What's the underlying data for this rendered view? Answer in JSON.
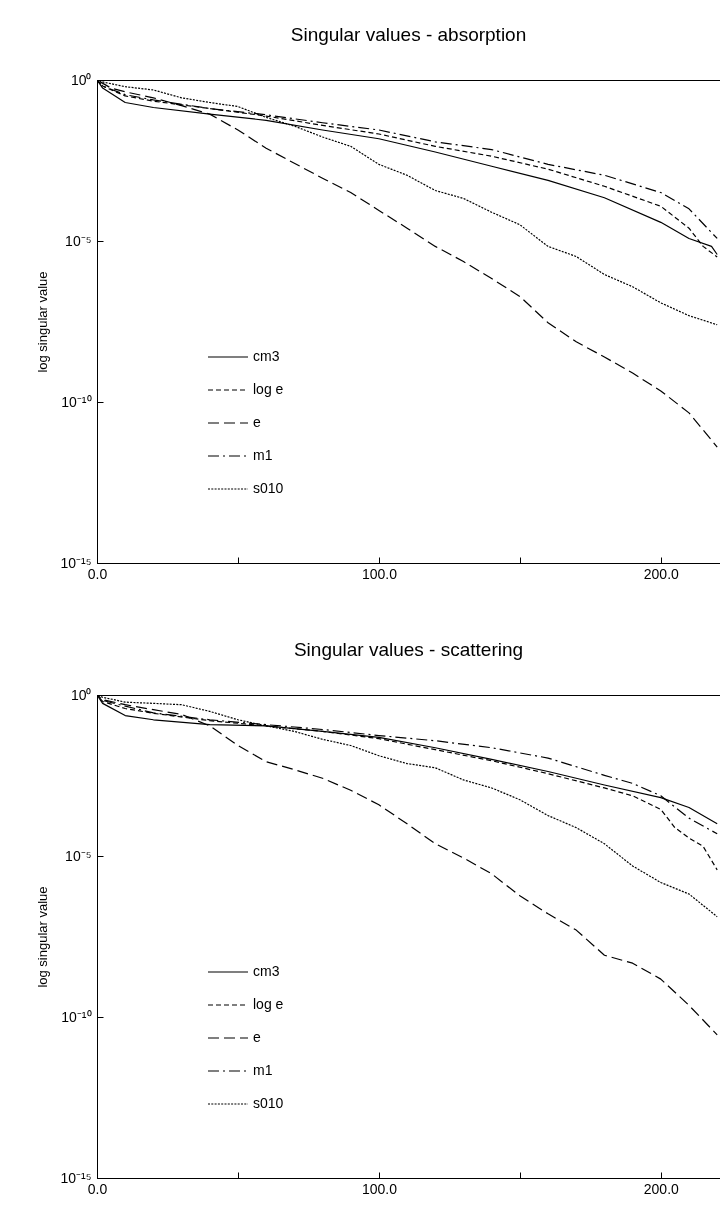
{
  "chart_data": [
    {
      "type": "line",
      "title": "Singular values - absorption",
      "ylabel": "log singular value",
      "log": true,
      "legend": "left",
      "grid": false,
      "xlim": [
        0,
        221
      ],
      "xticks": [
        {
          "value": 0,
          "label": "0.0"
        },
        {
          "value": 50,
          "label": null
        },
        {
          "value": 100,
          "label": "100.0"
        },
        {
          "value": 150,
          "label": null
        },
        {
          "value": 200,
          "label": "200.0"
        }
      ],
      "ylim": [
        1e-15,
        1
      ],
      "yticks": [
        {
          "value": 1,
          "label": "10⁰"
        },
        {
          "value": 1e-05,
          "label": "10⁻⁵"
        },
        {
          "value": 1e-10,
          "label": "10⁻¹⁰"
        },
        {
          "value": 1e-15,
          "label": "10⁻¹⁵"
        }
      ],
      "series": [
        {
          "name": "cm3",
          "color": "#000000",
          "line_style": "solid",
          "x": [
            0,
            2,
            10,
            20,
            40,
            60,
            80,
            100,
            120,
            140,
            160,
            180,
            200,
            210,
            218,
            220
          ],
          "values": [
            1,
            0.56,
            0.2,
            0.14,
            0.087,
            0.056,
            0.028,
            0.015,
            0.0058,
            0.0021,
            0.00076,
            0.00022,
            3.8e-05,
            1.2e-05,
            6.8e-06,
            3.8e-06
          ]
        },
        {
          "name": "log e",
          "color": "#000000",
          "line_style": "dashed",
          "x": [
            0,
            2,
            10,
            20,
            40,
            60,
            80,
            100,
            120,
            140,
            160,
            180,
            200,
            210,
            215,
            220
          ],
          "values": [
            1,
            0.65,
            0.32,
            0.22,
            0.13,
            0.076,
            0.039,
            0.021,
            0.0087,
            0.0043,
            0.0017,
            0.0005,
            0.00012,
            2.5e-05,
            6.8e-06,
            3.2e-06
          ]
        },
        {
          "name": "e",
          "color": "#000000",
          "line_style": "long-dashed",
          "x": [
            0,
            5,
            10,
            20,
            30,
            40,
            50,
            60,
            70,
            80,
            90,
            100,
            110,
            120,
            130,
            140,
            150,
            160,
            170,
            180,
            190,
            200,
            210,
            220
          ],
          "values": [
            1,
            0.56,
            0.43,
            0.28,
            0.16,
            0.087,
            0.028,
            0.0076,
            0.0026,
            0.00089,
            0.00032,
            8.9e-05,
            2.5e-05,
            6.8e-06,
            2.3e-06,
            6.8e-07,
            1.9e-07,
            2.9e-08,
            7.4e-09,
            2.5e-09,
            7.9e-10,
            2.2e-10,
            4.6e-11,
            4e-12
          ]
        },
        {
          "name": "m1",
          "color": "#000000",
          "line_style": "dash-dot",
          "x": [
            0,
            2,
            10,
            20,
            40,
            60,
            80,
            100,
            120,
            140,
            160,
            180,
            200,
            210,
            220
          ],
          "values": [
            1,
            0.65,
            0.35,
            0.24,
            0.13,
            0.083,
            0.047,
            0.028,
            0.012,
            0.0069,
            0.0024,
            0.0011,
            0.00032,
            0.0001,
            1.2e-05
          ]
        },
        {
          "name": "s010",
          "color": "#000000",
          "line_style": "dotted",
          "x": [
            0,
            2,
            10,
            20,
            30,
            40,
            50,
            60,
            70,
            80,
            90,
            100,
            110,
            120,
            130,
            140,
            150,
            160,
            170,
            180,
            190,
            200,
            210,
            220
          ],
          "values": [
            1,
            0.87,
            0.62,
            0.49,
            0.28,
            0.2,
            0.15,
            0.069,
            0.037,
            0.017,
            0.0087,
            0.0024,
            0.0011,
            0.00037,
            0.00021,
            7.8e-05,
            3.2e-05,
            6.8e-06,
            3.3e-06,
            9.1e-07,
            3.8e-07,
            1.2e-07,
            4.8e-08,
            2.5e-08
          ]
        }
      ]
    },
    {
      "type": "line",
      "title": "Singular values - scattering",
      "ylabel": "log singular value",
      "log": true,
      "legend": "left",
      "grid": false,
      "xlim": [
        0,
        221
      ],
      "xticks": [
        {
          "value": 0,
          "label": "0.0"
        },
        {
          "value": 50,
          "label": null
        },
        {
          "value": 100,
          "label": "100.0"
        },
        {
          "value": 150,
          "label": null
        },
        {
          "value": 200,
          "label": "200.0"
        }
      ],
      "ylim": [
        1e-15,
        1
      ],
      "yticks": [
        {
          "value": 1,
          "label": "10⁰"
        },
        {
          "value": 1e-05,
          "label": "10⁻⁵"
        },
        {
          "value": 1e-10,
          "label": "10⁻¹⁰"
        },
        {
          "value": 1e-15,
          "label": "10⁻¹⁵"
        }
      ],
      "series": [
        {
          "name": "cm3",
          "color": "#000000",
          "line_style": "solid",
          "x": [
            0,
            2,
            10,
            20,
            40,
            60,
            80,
            100,
            120,
            140,
            160,
            180,
            200,
            210,
            220
          ],
          "values": [
            1,
            0.55,
            0.23,
            0.17,
            0.12,
            0.11,
            0.074,
            0.048,
            0.023,
            0.01,
            0.0042,
            0.0016,
            0.00065,
            0.00032,
            0.0001
          ]
        },
        {
          "name": "log e",
          "color": "#000000",
          "line_style": "dashed",
          "x": [
            0,
            2,
            10,
            20,
            40,
            60,
            80,
            100,
            120,
            140,
            160,
            180,
            190,
            200,
            205,
            210,
            215,
            220
          ],
          "values": [
            1,
            0.63,
            0.38,
            0.27,
            0.16,
            0.11,
            0.074,
            0.044,
            0.02,
            0.0091,
            0.0036,
            0.0013,
            0.00074,
            0.00028,
            7.6e-05,
            3.6e-05,
            2e-05,
            3.7e-06
          ]
        },
        {
          "name": "e",
          "color": "#000000",
          "line_style": "long-dashed",
          "x": [
            0,
            2,
            10,
            20,
            30,
            40,
            50,
            60,
            70,
            80,
            90,
            100,
            110,
            120,
            130,
            140,
            150,
            160,
            170,
            180,
            190,
            200,
            210,
            220
          ],
          "values": [
            1,
            0.72,
            0.5,
            0.35,
            0.25,
            0.11,
            0.027,
            0.0085,
            0.0048,
            0.0026,
            0.0011,
            0.00039,
            0.0001,
            2.4e-05,
            8.7e-06,
            2.8e-06,
            5.8e-07,
            1.6e-07,
            5e-08,
            8.3e-09,
            4.7e-09,
            1.5e-09,
            2.3e-10,
            2.8e-11
          ]
        },
        {
          "name": "m1",
          "color": "#000000",
          "line_style": "dash-dot",
          "x": [
            0,
            2,
            10,
            20,
            40,
            60,
            80,
            100,
            120,
            140,
            160,
            180,
            190,
            200,
            210,
            220
          ],
          "values": [
            1,
            0.68,
            0.45,
            0.28,
            0.17,
            0.12,
            0.085,
            0.055,
            0.038,
            0.023,
            0.011,
            0.0032,
            0.0018,
            0.00074,
            0.00015,
            4.9e-05
          ]
        },
        {
          "name": "s010",
          "color": "#000000",
          "line_style": "dotted",
          "x": [
            0,
            2,
            10,
            20,
            30,
            40,
            50,
            60,
            70,
            80,
            90,
            100,
            110,
            120,
            130,
            140,
            150,
            160,
            170,
            180,
            190,
            200,
            210,
            220
          ],
          "values": [
            1,
            0.85,
            0.6,
            0.55,
            0.5,
            0.31,
            0.17,
            0.11,
            0.074,
            0.042,
            0.027,
            0.013,
            0.0074,
            0.0055,
            0.0023,
            0.0013,
            0.00056,
            0.00018,
            7.6e-05,
            2.4e-05,
            4.9e-06,
            1.5e-06,
            6.6e-07,
            1.3e-07
          ]
        }
      ]
    }
  ]
}
